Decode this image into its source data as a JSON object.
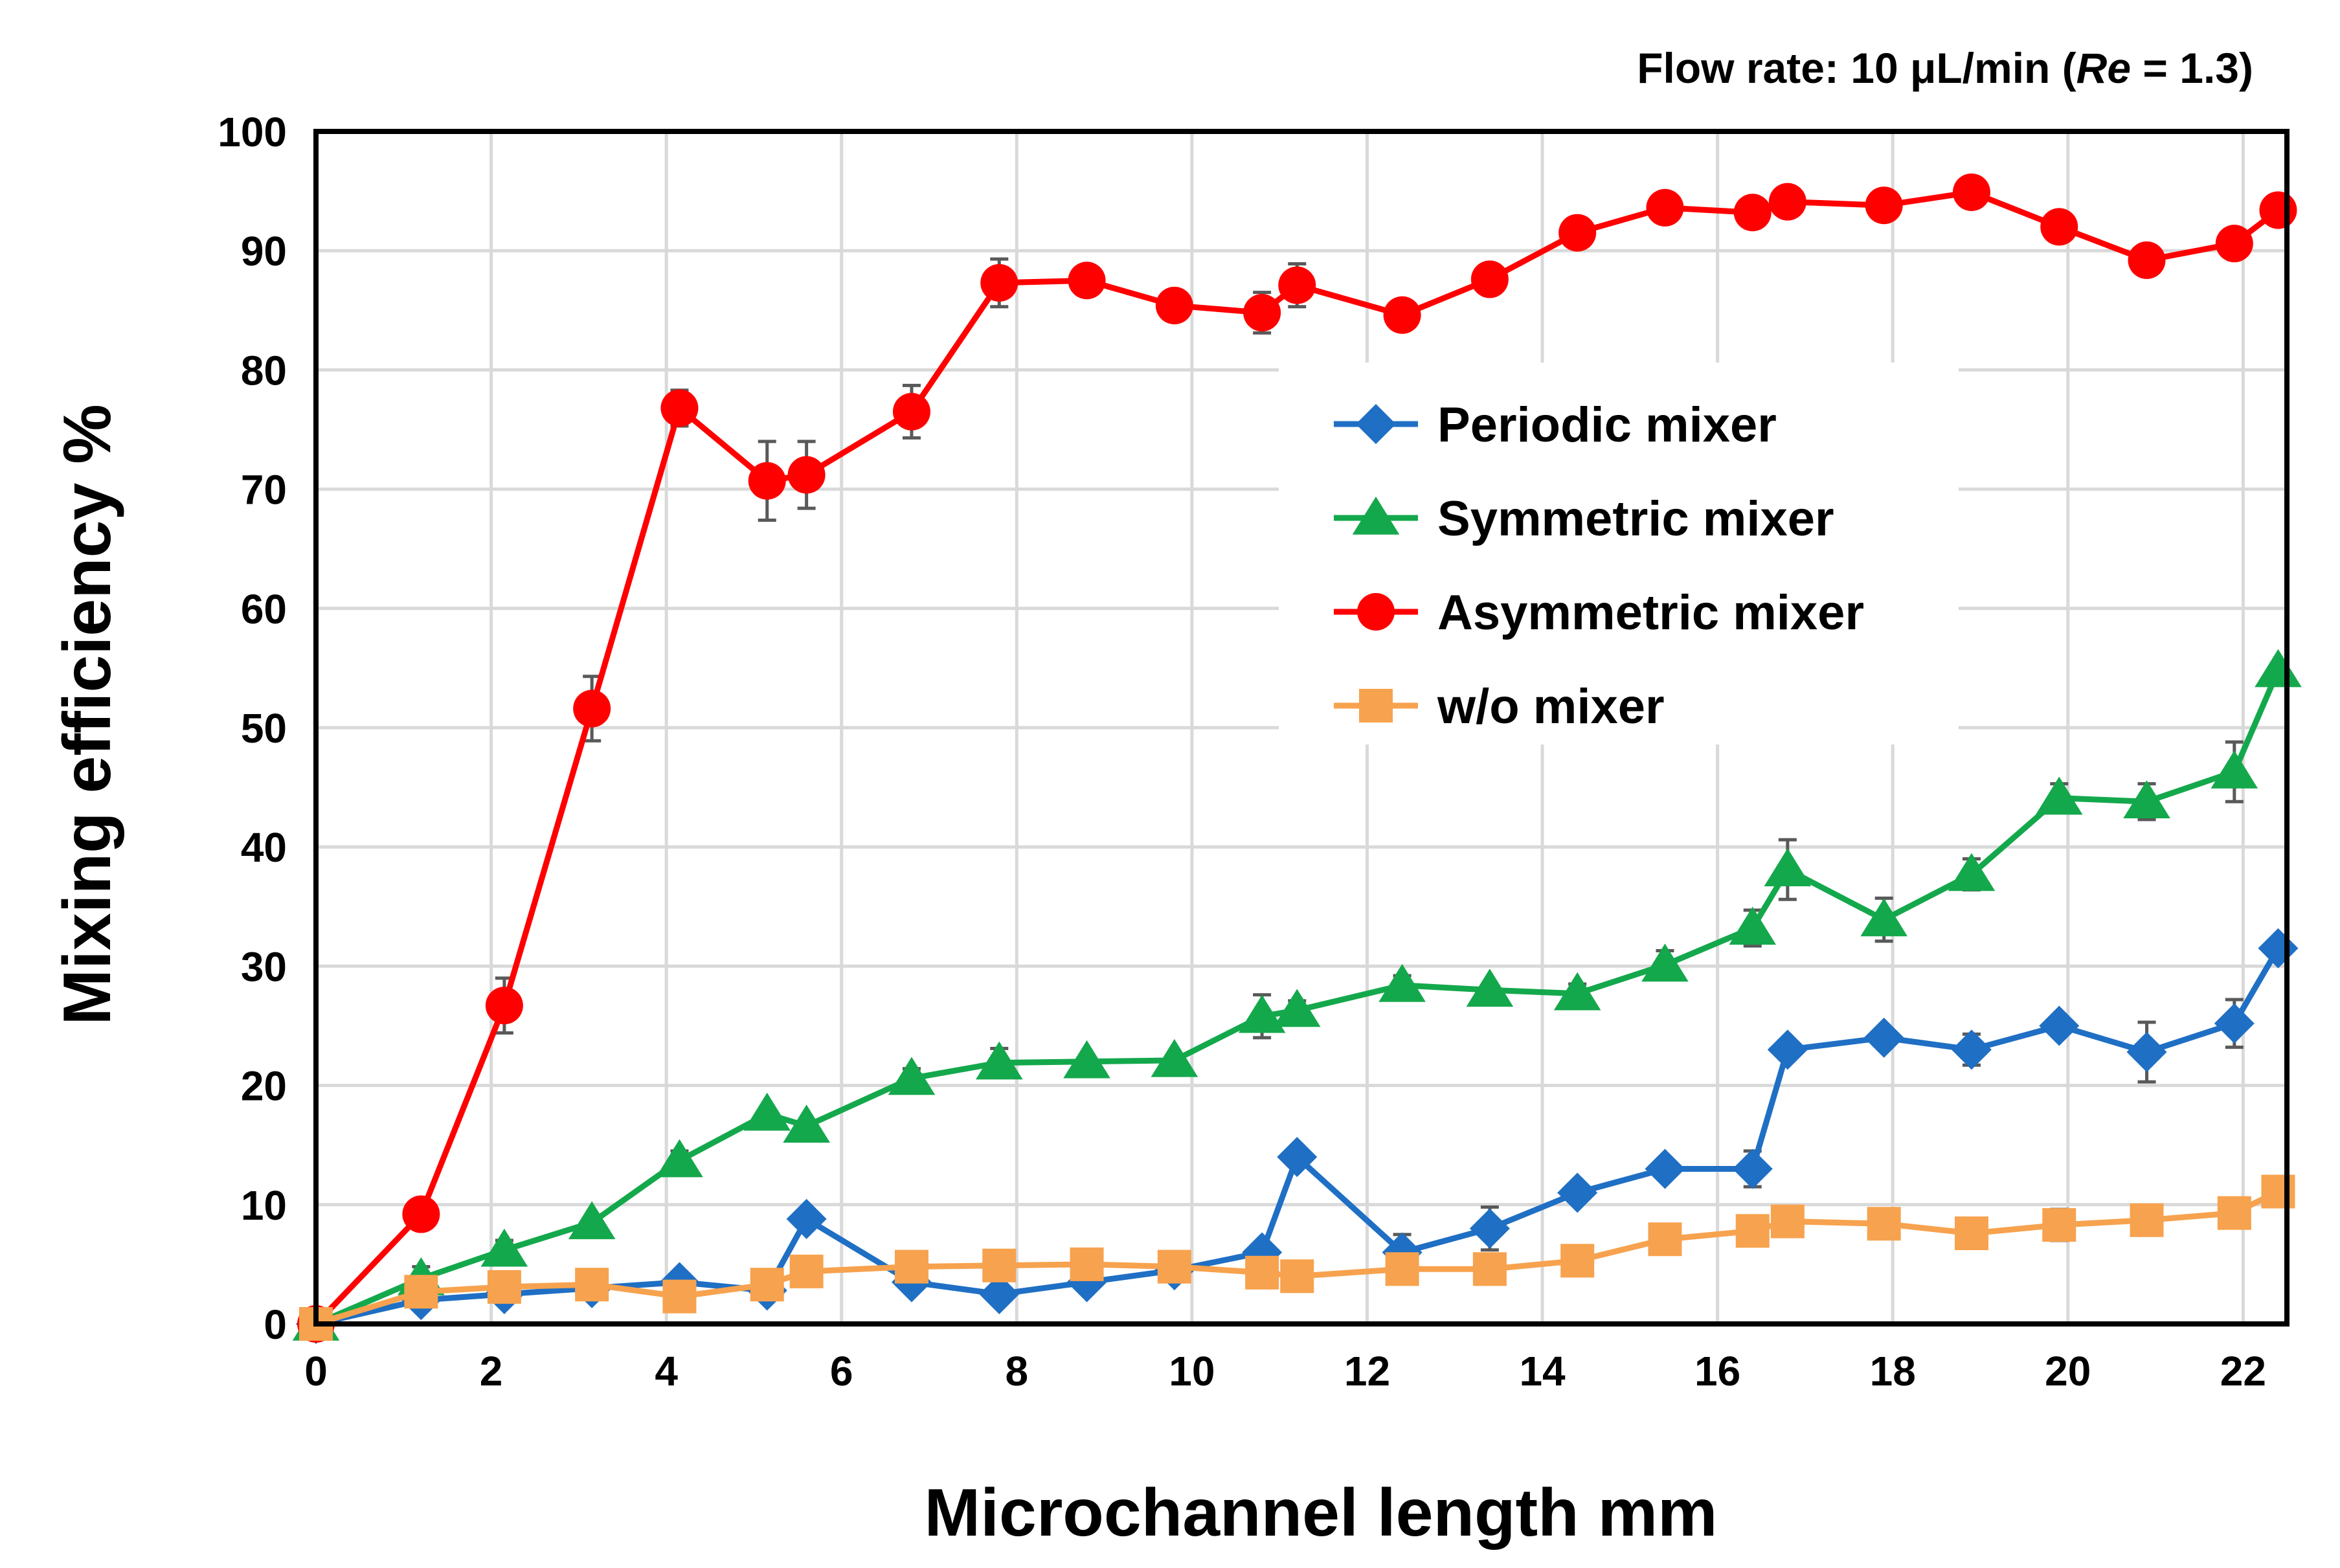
{
  "chart_data": {
    "type": "line",
    "title": "",
    "header": {
      "prefix": "Flow rate: 10 μL/min (",
      "italic": "Re",
      "suffix": " = 1.3)"
    },
    "xlabel": "Microchannel length  mm",
    "ylabel": "Mixing efficiency  %",
    "xlim": [
      0,
      22.5
    ],
    "ylim": [
      0,
      100
    ],
    "x_ticks": [
      0,
      2,
      4,
      6,
      8,
      10,
      12,
      14,
      16,
      18,
      20,
      22
    ],
    "x_tick_labels": [
      "0",
      "2",
      "4",
      "6",
      "8",
      "10",
      "12",
      "14",
      "16",
      "18",
      "20",
      "22"
    ],
    "y_ticks": [
      0,
      10,
      20,
      30,
      40,
      50,
      60,
      70,
      80,
      90,
      100
    ],
    "y_tick_labels": [
      "0",
      "10",
      "20",
      "30",
      "40",
      "50",
      "60",
      "70",
      "80",
      "90",
      "100"
    ],
    "grid": true,
    "legend_position": "center-right",
    "series": [
      {
        "name": "Periodic mixer",
        "color": "#1f6fc4",
        "marker": "diamond",
        "x": [
          0,
          1.2,
          2.15,
          3.15,
          4.15,
          5.15,
          5.6,
          6.8,
          7.8,
          8.8,
          9.8,
          10.8,
          11.2,
          12.4,
          13.4,
          14.4,
          15.4,
          16.4,
          16.8,
          17.9,
          18.9,
          19.9,
          20.9,
          21.9,
          22.4
        ],
        "y": [
          0,
          2,
          2.5,
          3,
          3.5,
          2.8,
          8.8,
          3.5,
          2.5,
          3.5,
          4.5,
          6,
          14,
          6,
          8,
          11,
          13,
          13,
          23,
          24,
          23,
          25,
          22.8,
          25.2,
          31.5
        ],
        "err": [
          0,
          0,
          0,
          0,
          0,
          0,
          0,
          0,
          0,
          0,
          0,
          0,
          0,
          1.5,
          1.8,
          0,
          0,
          1.5,
          0,
          0,
          1.3,
          0,
          2.5,
          2,
          0
        ]
      },
      {
        "name": "Symmetric mixer",
        "color": "#14a84c",
        "marker": "triangle",
        "x": [
          0,
          1.2,
          2.15,
          3.15,
          4.15,
          5.15,
          5.6,
          6.8,
          7.8,
          8.8,
          9.8,
          10.8,
          11.2,
          12.4,
          13.4,
          14.4,
          15.4,
          16.4,
          16.8,
          17.9,
          18.9,
          19.9,
          20.9,
          21.9,
          22.4
        ],
        "y": [
          0,
          3.8,
          6.2,
          8.5,
          13.7,
          17.6,
          16.6,
          20.6,
          21.9,
          22,
          22.1,
          25.8,
          26.3,
          28.4,
          28,
          27.7,
          30.1,
          33.2,
          38.1,
          33.9,
          37.7,
          44.1,
          43.8,
          46.3,
          54.8
        ],
        "err": [
          0,
          1,
          0.8,
          0,
          0.8,
          0,
          0,
          0.8,
          1.2,
          0,
          0,
          1.8,
          0.8,
          0.8,
          0,
          0.8,
          1.2,
          1.5,
          2.5,
          1.8,
          1.3,
          1.2,
          1.5,
          2.5,
          0
        ]
      },
      {
        "name": "Asymmetric mixer",
        "color": "#ff0000",
        "marker": "circle",
        "x": [
          0,
          1.2,
          2.15,
          3.15,
          4.15,
          5.15,
          5.6,
          6.8,
          7.8,
          8.8,
          9.8,
          10.8,
          11.2,
          12.4,
          13.4,
          14.4,
          15.4,
          16.4,
          16.8,
          17.9,
          18.9,
          19.9,
          20.9,
          21.9,
          22.4
        ],
        "y": [
          0,
          9.2,
          26.7,
          51.6,
          76.8,
          70.7,
          71.2,
          76.5,
          87.3,
          87.5,
          85.4,
          84.8,
          87.1,
          84.6,
          87.6,
          91.5,
          93.6,
          93.2,
          94.1,
          93.8,
          94.9,
          92,
          89.2,
          90.6,
          93.4
        ],
        "err": [
          0,
          0,
          2.3,
          2.7,
          1.5,
          3.3,
          2.8,
          2.2,
          2,
          0,
          0,
          1.7,
          1.8,
          0,
          0,
          0,
          0,
          0,
          0,
          0,
          0,
          0,
          0,
          0,
          0
        ]
      },
      {
        "name": "w/o mixer",
        "color": "#f7a24e",
        "marker": "square",
        "x": [
          0,
          1.2,
          2.15,
          3.15,
          4.15,
          5.15,
          5.6,
          6.8,
          7.8,
          8.8,
          9.8,
          10.8,
          11.2,
          12.4,
          13.4,
          14.4,
          15.4,
          16.4,
          16.8,
          17.9,
          18.9,
          19.9,
          20.9,
          21.9,
          22.4
        ],
        "y": [
          0,
          2.7,
          3.1,
          3.3,
          2.3,
          3.3,
          4.4,
          4.8,
          4.9,
          5,
          4.8,
          4.3,
          4,
          4.6,
          4.6,
          5.3,
          7.1,
          7.8,
          8.6,
          8.4,
          7.6,
          8.3,
          8.7,
          9.3,
          11.1
        ],
        "err": [
          0,
          0,
          0,
          0,
          0,
          0,
          0,
          0,
          0,
          0,
          0,
          0,
          0,
          0,
          0,
          0,
          0,
          0,
          0,
          0,
          0,
          1.3,
          0,
          0,
          0
        ]
      }
    ]
  }
}
